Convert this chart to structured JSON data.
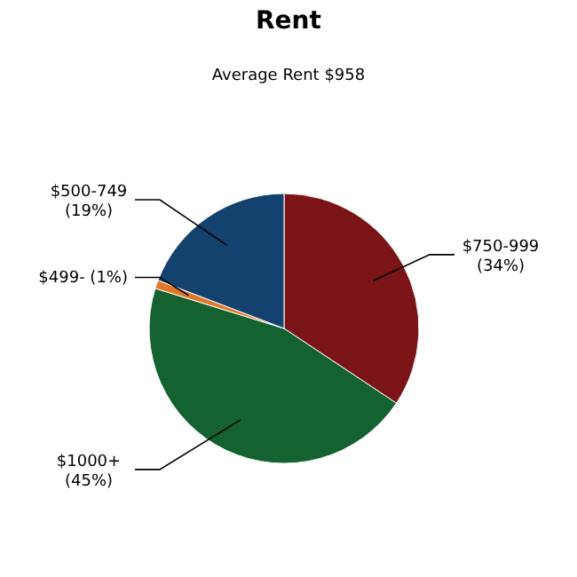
{
  "chart_data": {
    "type": "pie",
    "title": "Rent",
    "subtitle": "Average Rent  $958",
    "categories": [
      "$750-999",
      "$1000+",
      "$499-",
      "$500-749"
    ],
    "values": [
      34,
      45,
      1,
      19
    ],
    "colors": [
      "#7a1416",
      "#13622f",
      "#e0782a",
      "#14426e"
    ],
    "value_labels": [
      "(34%)",
      "(45%)",
      "(1%)",
      "(19%)"
    ],
    "legend": false
  }
}
